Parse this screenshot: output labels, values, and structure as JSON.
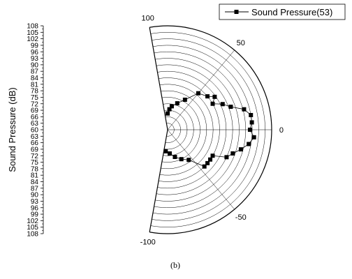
{
  "chart_data": {
    "type": "polar-scatter-line",
    "ylabel": "Sound Pressure (dB)",
    "radial_ticks_upper": [
      "108",
      "105",
      "102",
      "99",
      "96",
      "93",
      "90",
      "87",
      "84",
      "81",
      "78",
      "75",
      "72",
      "69",
      "66",
      "63",
      "60"
    ],
    "radial_ticks_lower": [
      "63",
      "66",
      "69",
      "72",
      "75",
      "78",
      "81",
      "84",
      "87",
      "90",
      "93",
      "96",
      "99",
      "102",
      "105",
      "108"
    ],
    "radial_range": [
      60,
      108
    ],
    "angle_labels": [
      "100",
      "50",
      "0",
      "-50",
      "-100"
    ],
    "angle_values": [
      100,
      50,
      0,
      -50,
      -100
    ],
    "angle_range": [
      -100,
      100
    ],
    "legend": {
      "label": "Sound Pressure(53)",
      "placement": "top-right"
    },
    "series": [
      {
        "name": "Sound Pressure(53)",
        "marker": "square",
        "color": "#000000",
        "points": [
          {
            "angle": 90,
            "value": 67.5
          },
          {
            "angle": 85,
            "value": 69.5
          },
          {
            "angle": 80,
            "value": 71
          },
          {
            "angle": 70,
            "value": 73
          },
          {
            "angle": 60,
            "value": 76
          },
          {
            "angle": 50,
            "value": 82
          },
          {
            "angle": 40,
            "value": 84
          },
          {
            "angle": 35,
            "value": 86.5
          },
          {
            "angle": 30,
            "value": 84
          },
          {
            "angle": 25,
            "value": 88
          },
          {
            "angle": 20,
            "value": 91
          },
          {
            "angle": 15,
            "value": 96.5
          },
          {
            "angle": 10,
            "value": 99
          },
          {
            "angle": 5,
            "value": 99
          },
          {
            "angle": 0,
            "value": 98
          },
          {
            "angle": -5,
            "value": 100
          },
          {
            "angle": -10,
            "value": 98
          },
          {
            "angle": -15,
            "value": 95
          },
          {
            "angle": -20,
            "value": 92
          },
          {
            "angle": -25,
            "value": 90
          },
          {
            "angle": -30,
            "value": 84
          },
          {
            "angle": -35,
            "value": 84
          },
          {
            "angle": -40,
            "value": 84
          },
          {
            "angle": -45,
            "value": 84
          },
          {
            "angle": -55,
            "value": 77
          },
          {
            "angle": -65,
            "value": 75
          },
          {
            "angle": -75,
            "value": 73
          },
          {
            "angle": -85,
            "value": 71
          },
          {
            "angle": -95,
            "value": 70
          }
        ]
      }
    ]
  },
  "caption": "(b)"
}
